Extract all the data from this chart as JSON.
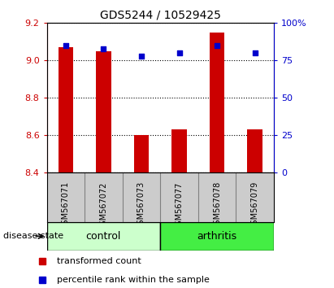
{
  "title": "GDS5244 / 10529425",
  "samples": [
    "GSM567071",
    "GSM567072",
    "GSM567073",
    "GSM567077",
    "GSM567078",
    "GSM567079"
  ],
  "transformed_counts": [
    9.07,
    9.05,
    8.6,
    8.63,
    9.15,
    8.63
  ],
  "percentile_ranks": [
    85,
    83,
    78,
    80,
    85,
    80
  ],
  "ylim_left": [
    8.4,
    9.2
  ],
  "ylim_right": [
    0,
    100
  ],
  "yticks_left": [
    8.4,
    8.6,
    8.8,
    9.0,
    9.2
  ],
  "yticks_right": [
    0,
    25,
    50,
    75,
    100
  ],
  "ytick_labels_right": [
    "0",
    "25",
    "50",
    "75",
    "100%"
  ],
  "groups": [
    {
      "label": "control",
      "indices": [
        0,
        1,
        2
      ],
      "color": "#ccffcc"
    },
    {
      "label": "arthritis",
      "indices": [
        3,
        4,
        5
      ],
      "color": "#44ee44"
    }
  ],
  "bar_color": "#cc0000",
  "dot_color": "#0000cc",
  "bar_bottom": 8.4,
  "label_area_bg": "#cccccc",
  "group_label": "disease state",
  "legend_items": [
    {
      "label": "transformed count",
      "color": "#cc0000"
    },
    {
      "label": "percentile rank within the sample",
      "color": "#0000cc"
    }
  ]
}
